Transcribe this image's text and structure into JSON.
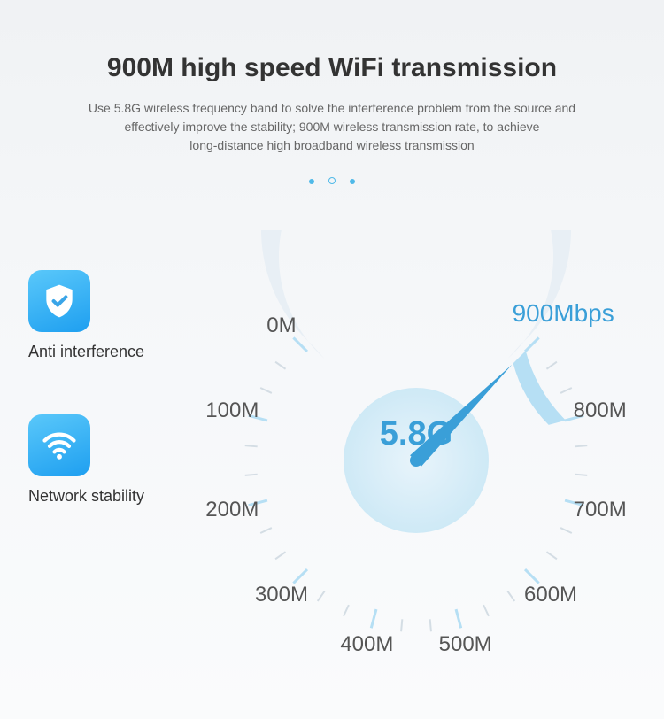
{
  "title": {
    "text": "900M high speed WiFi transmission",
    "fontsize": 30,
    "color": "#333333"
  },
  "subtitle": {
    "line1": "Use 5.8G wireless frequency band to solve the interference problem from the source and",
    "line2": "effectively improve the stability; 900M wireless transmission rate, to achieve",
    "line3": "long-distance high broadband wireless transmission",
    "fontsize": 14,
    "color": "#666666"
  },
  "pager": {
    "dots": [
      {
        "filled": true,
        "size": 6,
        "color": "#4fb9e8"
      },
      {
        "filled": false,
        "size": 8,
        "color": "#4fb9e8"
      },
      {
        "filled": true,
        "size": 6,
        "color": "#4fb9e8"
      }
    ]
  },
  "features": [
    {
      "icon": "shield-check",
      "label": "Anti interference",
      "bg_gradient_from": "#5ac8fa",
      "bg_gradient_to": "#1e9ff0"
    },
    {
      "icon": "wifi",
      "label": "Network stability",
      "bg_gradient_from": "#5ac8fa",
      "bg_gradient_to": "#1e9ff0"
    }
  ],
  "feature_label_fontsize": 18,
  "gauge": {
    "type": "radial-gauge",
    "center_text": "5.8G",
    "center_fontsize": 38,
    "center_color": "#3a9fd8",
    "ticks": [
      {
        "label": "0M",
        "angle": -135
      },
      {
        "label": "100M",
        "angle": -165
      },
      {
        "label": "200M",
        "angle": -195
      },
      {
        "label": "300M",
        "angle": -225
      },
      {
        "label": "400M",
        "angle": -255
      },
      {
        "label": "500M",
        "angle": -285
      },
      {
        "label": "600M",
        "angle": -315
      },
      {
        "label": "700M",
        "angle": -345
      },
      {
        "label": "800M",
        "angle": -375
      },
      {
        "label": "900Mbps",
        "angle": -405,
        "highlight": true
      }
    ],
    "tick_label_fontsize": 24,
    "tick_label_color": "#555555",
    "final_label_color": "#3a9fd8",
    "final_label_fontsize": 28,
    "needle_angle": -405,
    "needle_color": "#3a9fd8",
    "ring_outer_radius": 175,
    "ring_inner_radius": 155,
    "hub_radius": 82,
    "hub_fill": "#d8edf8",
    "arc_color_light": "#e8eff5",
    "arc_color_accent": "#b6dff4",
    "tick_minor_color": "#d4dde4",
    "tick_major_color": "#b6dff4",
    "label_radius": 215,
    "tick_line_outer": 196,
    "tick_line_inner_minor": 180,
    "tick_line_inner_major": 174
  }
}
